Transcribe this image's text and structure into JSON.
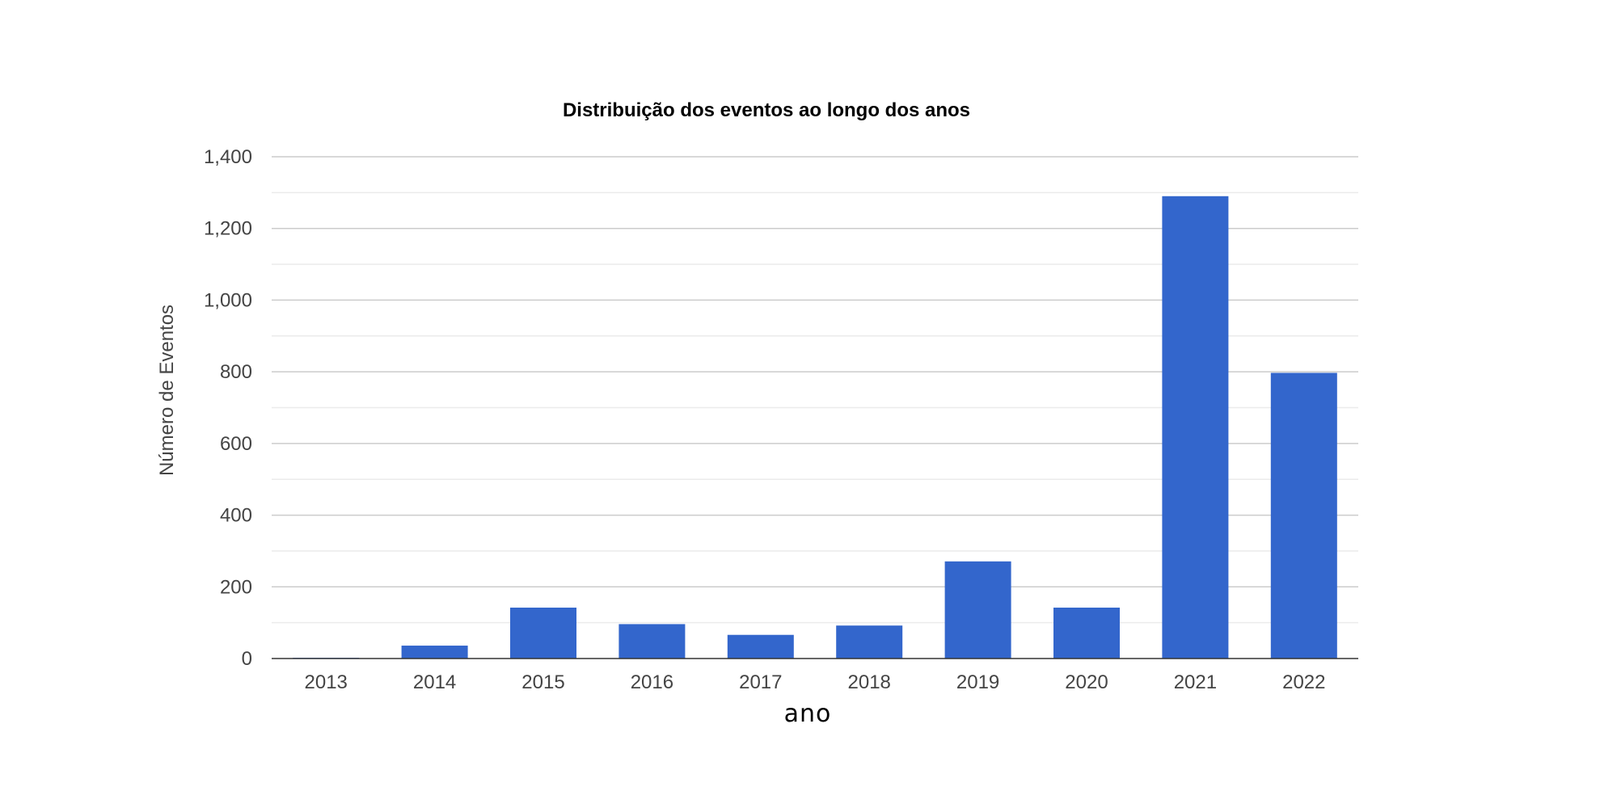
{
  "chart_data": {
    "type": "bar",
    "title": "Distribuição dos eventos ao longo dos anos",
    "xlabel": "ano",
    "ylabel": "Número de Eventos",
    "categories": [
      "2013",
      "2014",
      "2015",
      "2016",
      "2017",
      "2018",
      "2019",
      "2020",
      "2021",
      "2022"
    ],
    "values": [
      2,
      36,
      142,
      96,
      66,
      92,
      271,
      142,
      1290,
      797
    ],
    "ylim": [
      0,
      1400
    ],
    "yticks": [
      0,
      200,
      400,
      600,
      800,
      1000,
      1200,
      1400
    ],
    "ytick_labels": [
      "0",
      "200",
      "400",
      "600",
      "800",
      "1,000",
      "1,200",
      "1,400"
    ],
    "grid": true,
    "minor_grid": true,
    "legend": "none",
    "colors": {
      "bar": "#3366cc",
      "major_grid": "#cccccc",
      "minor_grid": "#ebebeb",
      "baseline": "#333333",
      "tick_text": "#444444",
      "title_text": "#000000"
    }
  }
}
